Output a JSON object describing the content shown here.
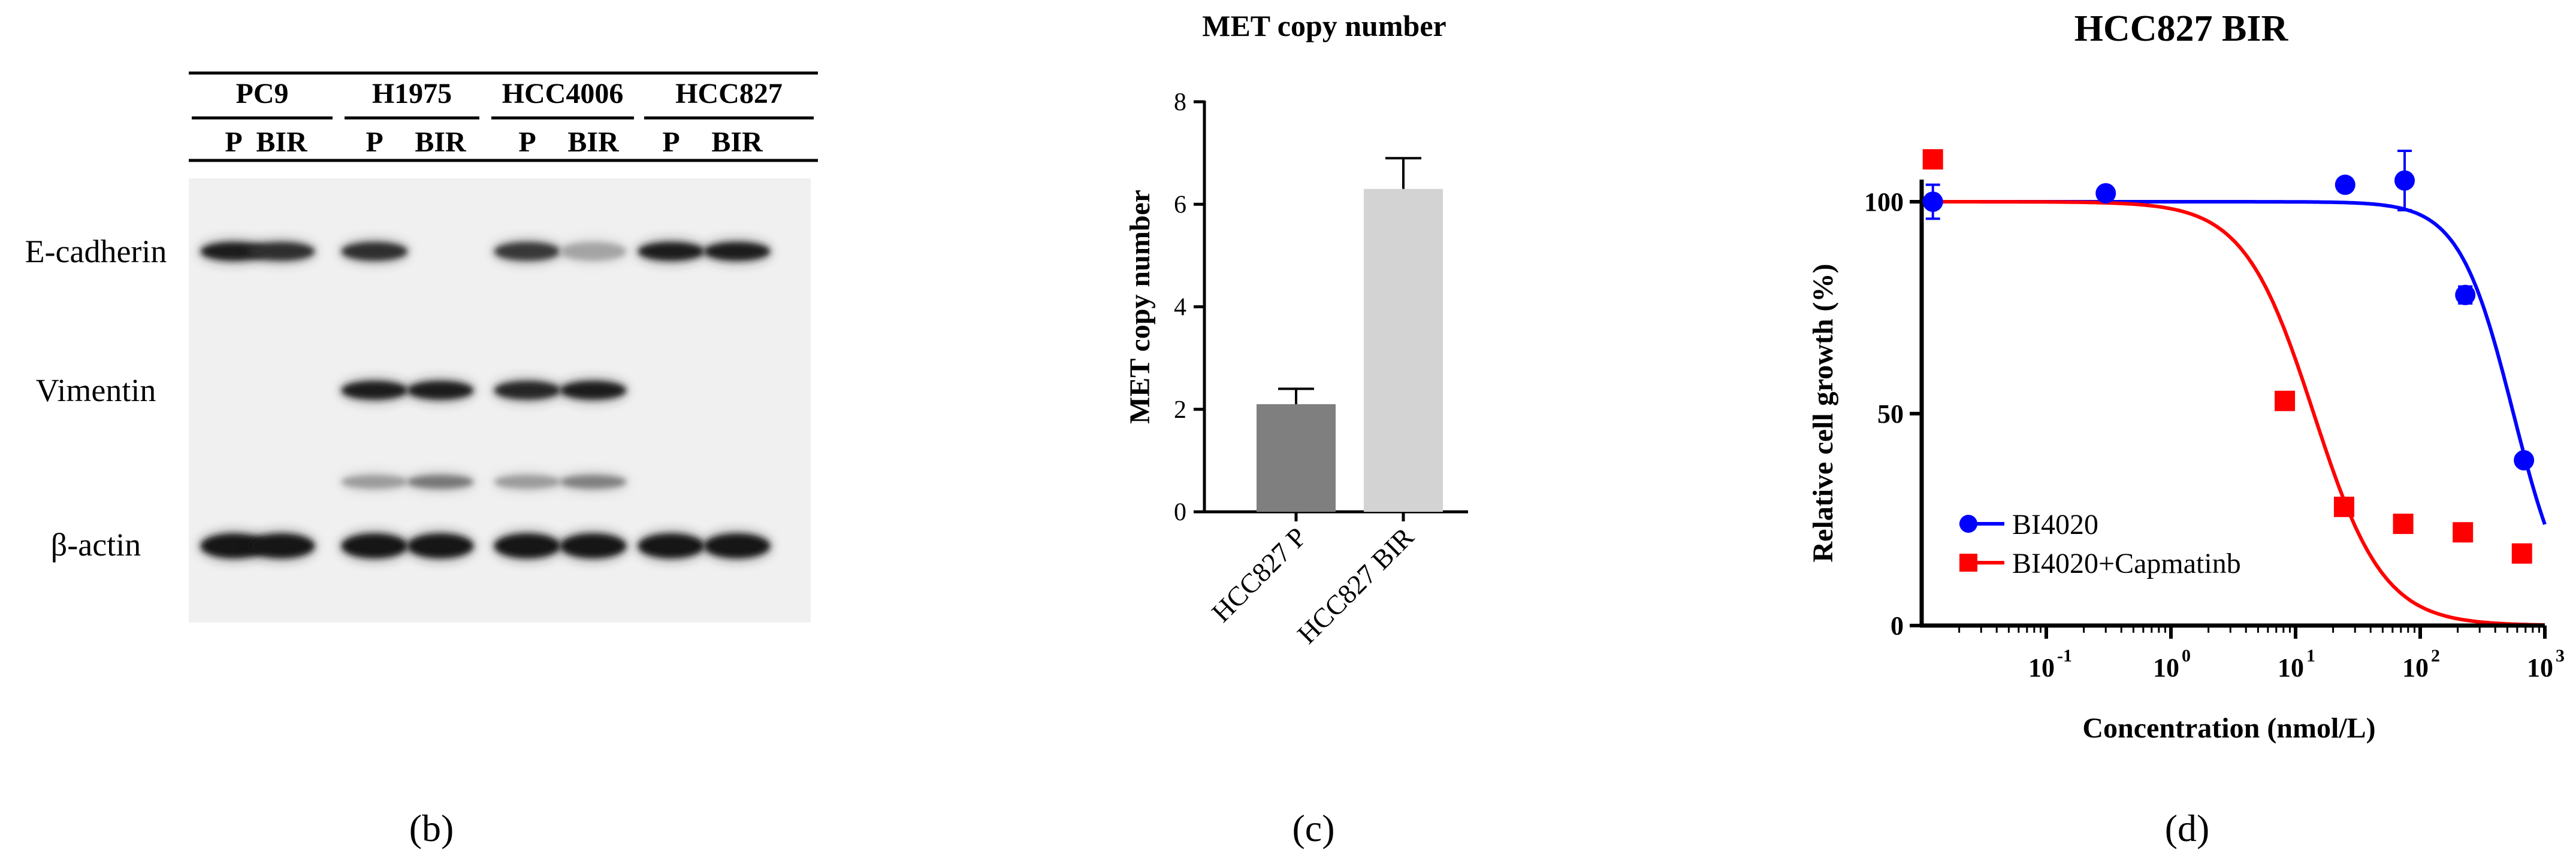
{
  "panel_labels": [
    "(b)",
    "(c)",
    "(d)"
  ],
  "western_blot": {
    "cell_lines": [
      "PC9",
      "H1975",
      "HCC4006",
      "HCC827"
    ],
    "lane_labels": [
      "P",
      "BIR",
      "P",
      "BIR",
      "P",
      "BIR",
      "P",
      "BIR"
    ],
    "proteins": [
      "E-cadherin",
      "Vimentin",
      "β-actin"
    ],
    "relative_intensity": {
      "E-cadherin": [
        0.95,
        0.85,
        0.85,
        0.0,
        0.8,
        0.2,
        0.95,
        0.95
      ],
      "Vimentin": [
        0.0,
        0.0,
        0.95,
        0.95,
        0.9,
        0.95,
        0.0,
        0.0
      ],
      "Vimentin-lower": [
        0.0,
        0.0,
        0.25,
        0.45,
        0.25,
        0.4,
        0.0,
        0.0
      ],
      "β-actin": [
        1.0,
        1.0,
        1.0,
        1.0,
        1.0,
        1.0,
        1.0,
        1.0
      ]
    }
  },
  "chart_data": [
    {
      "type": "bar",
      "title": "MET copy number",
      "ylabel": "MET copy number",
      "xlabel": "",
      "categories": [
        "HCC827 P",
        "HCC827 BIR"
      ],
      "values": [
        2.1,
        6.3
      ],
      "errors": [
        0.3,
        0.6
      ],
      "colors": [
        "#7f7f7f",
        "#d3d3d3"
      ],
      "ylim": [
        0,
        8
      ],
      "yticks": [
        0,
        2,
        4,
        6,
        8
      ],
      "grid": false
    },
    {
      "type": "scatter",
      "title": "HCC827 BIR",
      "xlabel": "Concentration (nmol/L)",
      "ylabel": "Relative cell growth (%)",
      "xscale": "log",
      "xlim": [
        0.01,
        1000
      ],
      "ylim": [
        0,
        110
      ],
      "xticks": [
        0.1,
        1,
        10,
        100,
        1000
      ],
      "xtick_labels": [
        "10",
        "10",
        "10",
        "10",
        "10"
      ],
      "xtick_exponents": [
        "-1",
        "0",
        "1",
        "2",
        "3"
      ],
      "yticks": [
        0,
        50,
        100
      ],
      "legend": "bottom-left",
      "grid": false,
      "series": [
        {
          "name": "BI4020",
          "color": "#0000ff",
          "marker": "circle",
          "x": [
            0.0123,
            0.3,
            25,
            75,
            230,
            680
          ],
          "y": [
            100,
            102,
            104,
            105,
            78,
            39
          ],
          "errors": [
            4,
            0,
            0,
            7,
            2,
            0
          ],
          "fit": {
            "top": 100,
            "bottom": 0,
            "ec50": 560,
            "hill": 2
          }
        },
        {
          "name": "BI4020+Capmatinb",
          "color": "#ff0000",
          "marker": "square",
          "x": [
            0.0123,
            8.2,
            24.5,
            73,
            220,
            655
          ],
          "y": [
            110,
            53,
            28,
            24,
            22,
            17
          ],
          "errors": [
            0,
            0,
            0,
            0,
            0,
            0
          ],
          "fit": {
            "top": 100,
            "bottom": 0,
            "ec50": 14,
            "hill": 1.55
          }
        }
      ]
    }
  ]
}
